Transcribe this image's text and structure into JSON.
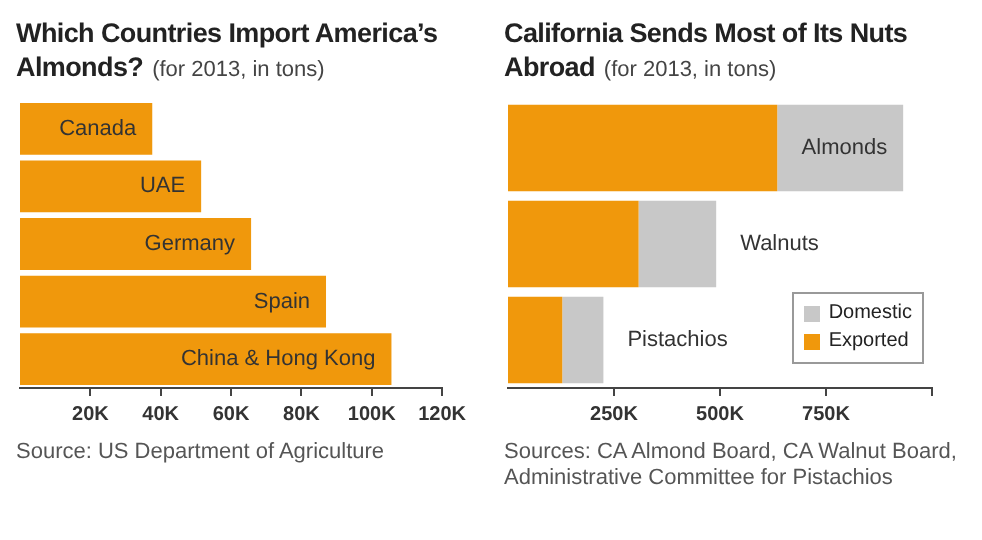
{
  "chart_data": [
    {
      "type": "bar",
      "orientation": "horizontal",
      "title": "Which Countries Import America’s Almonds?",
      "subtitle": "(for 2013, in tons)",
      "categories": [
        "Canada",
        "UAE",
        "Germany",
        "Spain",
        "China & Hong Kong"
      ],
      "values": [
        37600,
        51500,
        65700,
        87000,
        105600
      ],
      "color": "#f0980c",
      "xlim": [
        0,
        120000
      ],
      "xticks": [
        {
          "value": 20000,
          "label": "20K"
        },
        {
          "value": 40000,
          "label": "40K"
        },
        {
          "value": 60000,
          "label": "60K"
        },
        {
          "value": 80000,
          "label": "80K"
        },
        {
          "value": 100000,
          "label": "100K"
        },
        {
          "value": 120000,
          "label": "120K"
        }
      ],
      "grid": false,
      "annotations": [
        "Source: US Department of Agriculture"
      ]
    },
    {
      "type": "bar",
      "orientation": "horizontal",
      "stacked": true,
      "title": "California Sends Most of Its Nuts Abroad",
      "subtitle": "(for 2013, in tons)",
      "categories": [
        "Almonds",
        "Walnuts",
        "Pistachios"
      ],
      "series": [
        {
          "name": "Exported",
          "color": "#f0980c",
          "values": [
            635000,
            308000,
            128000
          ]
        },
        {
          "name": "Domestic",
          "color": "#c8c8c8",
          "values": [
            297000,
            183000,
            97000
          ]
        }
      ],
      "xlim": [
        0,
        1000000
      ],
      "xticks": [
        {
          "value": 250000,
          "label": "250K"
        },
        {
          "value": 500000,
          "label": "500K"
        },
        {
          "value": 750000,
          "label": "750K"
        },
        {
          "value": 1000000,
          "label": null
        }
      ],
      "grid": false,
      "legend": "bottom right",
      "annotations": [
        "Sources: CA Almond Board, CA Walnut Board, Administrative Committee for Pistachios"
      ]
    }
  ]
}
